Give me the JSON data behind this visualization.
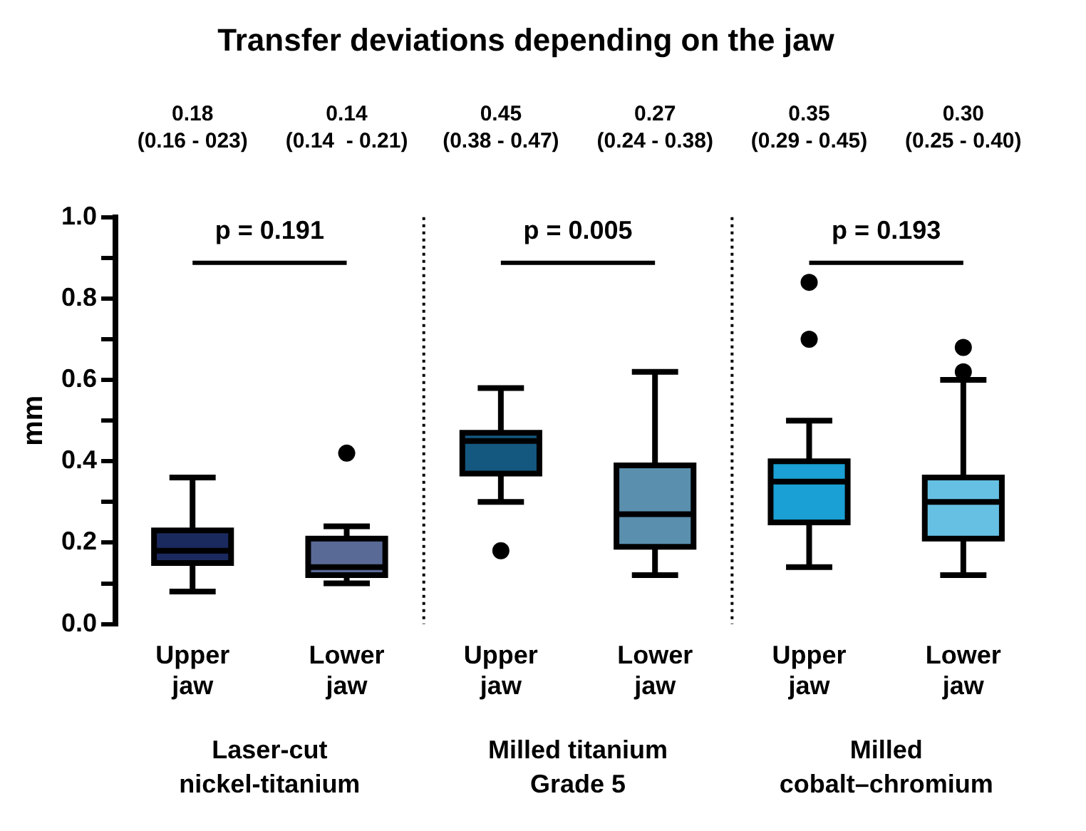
{
  "chart_data": {
    "type": "box",
    "title": "Transfer deviations depending on the jaw",
    "ylabel": "mm",
    "categories": [
      "Upper jaw",
      "Lower jaw",
      "Upper jaw",
      "Lower jaw",
      "Upper jaw",
      "Lower jaw"
    ],
    "colors": [
      "#1b2a5e",
      "#5a6a96",
      "#14577f",
      "#5a8fae",
      "#1aa0d4",
      "#66c0e4"
    ],
    "boxes": [
      {
        "low": 0.08,
        "q1": 0.15,
        "median": 0.18,
        "q3": 0.23,
        "high": 0.36
      },
      {
        "low": 0.1,
        "q1": 0.12,
        "median": 0.14,
        "q3": 0.21,
        "high": 0.24,
        "outliers": [
          0.42
        ]
      },
      {
        "low": 0.3,
        "q1": 0.37,
        "median": 0.45,
        "q3": 0.47,
        "high": 0.58,
        "outliers": [
          0.18
        ]
      },
      {
        "low": 0.12,
        "q1": 0.19,
        "median": 0.27,
        "q3": 0.39,
        "high": 0.62
      },
      {
        "low": 0.14,
        "q1": 0.25,
        "median": 0.35,
        "q3": 0.4,
        "high": 0.5,
        "outliers": [
          0.7,
          0.84
        ]
      },
      {
        "low": 0.12,
        "q1": 0.21,
        "median": 0.3,
        "q3": 0.36,
        "high": 0.6,
        "outliers": [
          0.62,
          0.68
        ]
      }
    ],
    "annotations": [
      "0.18\n(0.16 - 023)",
      "0.14\n(0.14  - 0.21)",
      "0.45\n(0.38 - 0.47)",
      "0.27\n(0.24 - 0.38)",
      "0.35\n(0.29 - 0.45)",
      "0.30\n(0.25 - 0.40)",
      "p = 0.191",
      "p = 0.005",
      "p = 0.193",
      "Laser-cut\nnickel-titanium",
      "Milled titanium\nGrade 5",
      "Milled\ncobalt–chromium"
    ],
    "ylim": [
      0,
      1
    ],
    "yticks": [
      {
        "value": 0,
        "label": "0.0"
      },
      {
        "value": 0.1,
        "label": null
      },
      {
        "value": 0.2,
        "label": "0.2"
      },
      {
        "value": 0.3,
        "label": null
      },
      {
        "value": 0.4,
        "label": "0.4"
      },
      {
        "value": 0.5,
        "label": null
      },
      {
        "value": 0.6,
        "label": "0.6"
      },
      {
        "value": 0.7,
        "label": null
      },
      {
        "value": 0.8,
        "label": "0.8"
      },
      {
        "value": 0.9,
        "label": null
      },
      {
        "value": 1,
        "label": "1.0"
      }
    ],
    "grid": false,
    "legend": false
  }
}
